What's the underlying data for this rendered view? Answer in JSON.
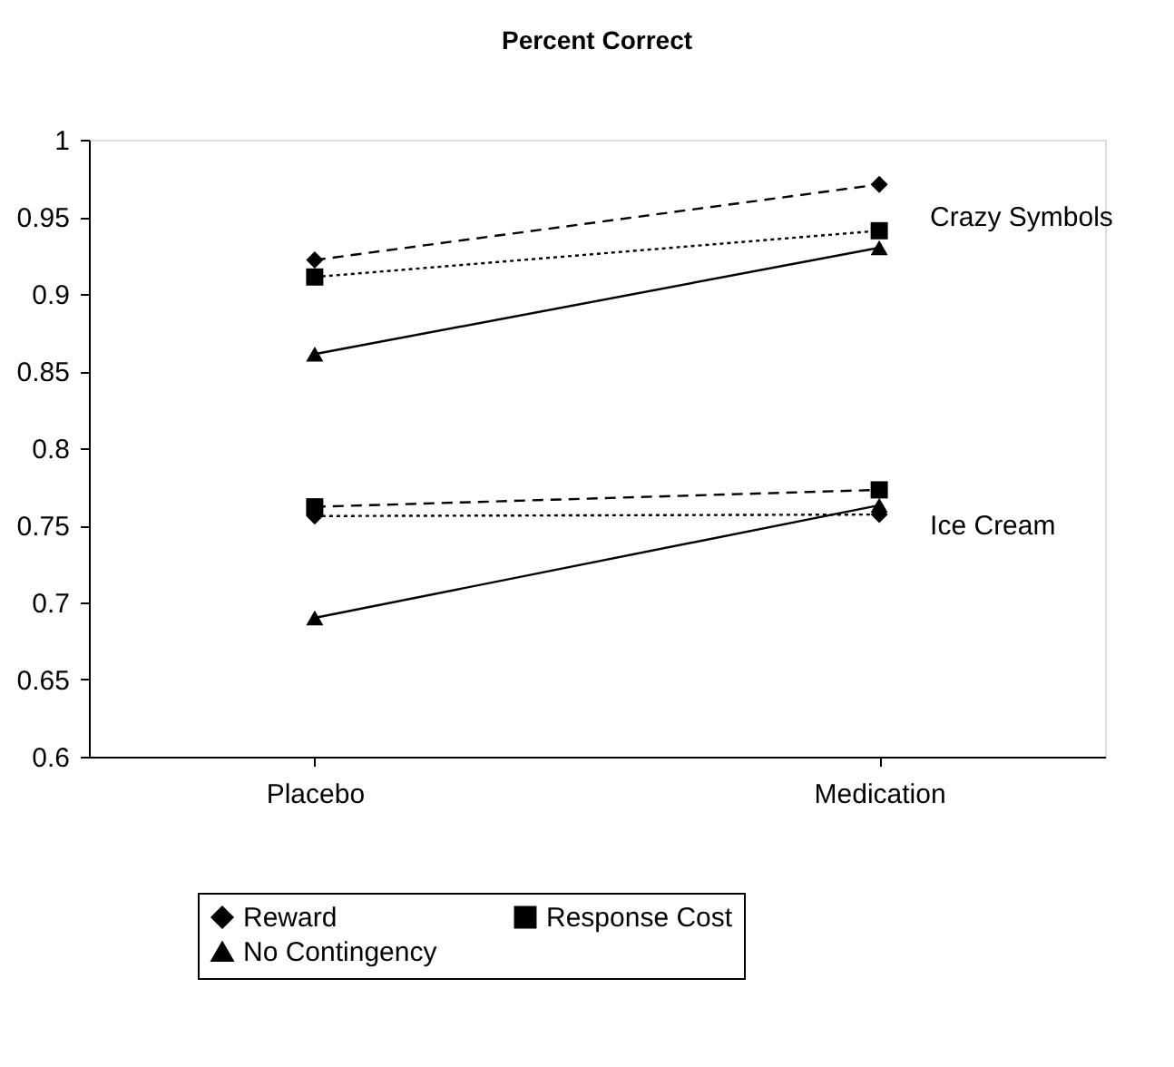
{
  "chart_data": {
    "type": "line",
    "title": "Percent Correct",
    "categories": [
      "Placebo",
      "Medication"
    ],
    "series": [
      {
        "name": "Reward",
        "color": "#000000",
        "marker": "diamond",
        "line_style": "dashed",
        "values": [
          0.922,
          0.971
        ]
      },
      {
        "name": "Response Cost",
        "color": "#000000",
        "marker": "square",
        "line_style": "dotted",
        "values": [
          0.911,
          0.941
        ]
      },
      {
        "name": "No Contingency",
        "color": "#000000",
        "marker": "triangle",
        "line_style": "solid",
        "values": [
          0.861,
          0.93
        ]
      },
      {
        "color": "#000000",
        "marker": "diamond",
        "line_style": "dotted",
        "values": [
          0.756,
          0.757
        ]
      },
      {
        "color": "#000000",
        "marker": "square",
        "line_style": "dashed",
        "values": [
          0.762,
          0.773
        ]
      },
      {
        "color": "#000000",
        "marker": "triangle",
        "line_style": "solid",
        "values": [
          0.69,
          0.763
        ]
      }
    ],
    "ylim": [
      0.6,
      1
    ],
    "yticks": [
      0.6,
      0.65,
      0.7,
      0.75,
      0.8,
      0.85,
      0.9,
      0.95,
      1
    ],
    "grid": false,
    "legend": "bottom",
    "annotations": [
      {
        "text": "Crazy Symbols",
        "x": "Medication",
        "y": 0.95
      },
      {
        "text": "Ice Cream",
        "x": "Medication",
        "y": 0.75
      }
    ]
  }
}
